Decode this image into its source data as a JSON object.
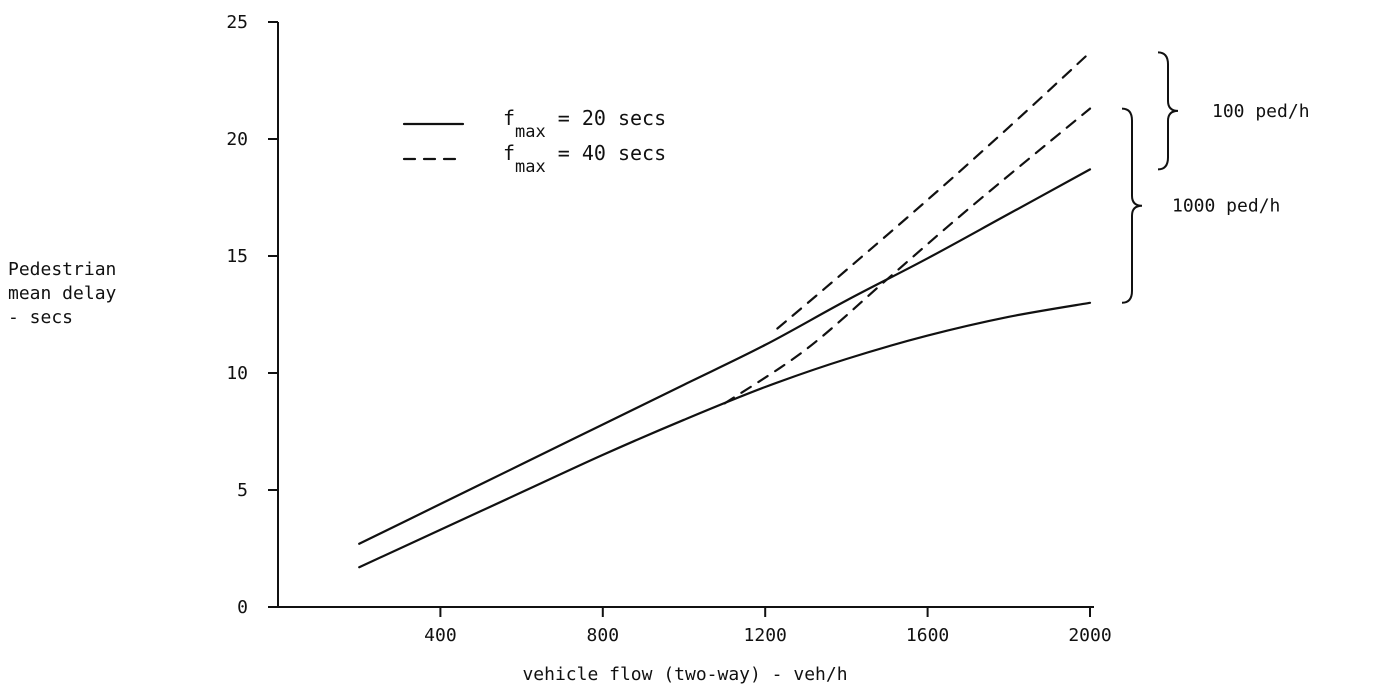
{
  "chart_data": {
    "type": "line",
    "title": "",
    "xlabel": "vehicle flow (two-way) - veh/h",
    "ylabel": [
      "Pedestrian",
      "mean delay",
      "- secs"
    ],
    "xlim": [
      0,
      2000
    ],
    "ylim": [
      0,
      25
    ],
    "x_ticks": [
      400,
      800,
      1200,
      1600,
      2000
    ],
    "y_ticks": [
      0,
      5,
      10,
      15,
      20,
      25
    ],
    "grid": false,
    "legend": {
      "placement": "top-left",
      "entries": [
        {
          "style": "solid",
          "base": "f",
          "sub": "max",
          "text": "= 20 secs"
        },
        {
          "style": "dashed",
          "base": "f",
          "sub": "max",
          "text": "= 40 secs"
        }
      ]
    },
    "brackets": [
      {
        "label": "100 ped/h",
        "y_range": [
          18.7,
          23.7
        ]
      },
      {
        "label": "1000 ped/h",
        "y_range": [
          13.0,
          21.3
        ]
      }
    ],
    "series": [
      {
        "style": "solid",
        "group": "100 ped/h",
        "points": [
          [
            200,
            2.7
          ],
          [
            400,
            4.4
          ],
          [
            600,
            6.1
          ],
          [
            800,
            7.8
          ],
          [
            1000,
            9.5
          ],
          [
            1200,
            11.2
          ],
          [
            1400,
            13.1
          ],
          [
            1600,
            14.9
          ],
          [
            1800,
            16.8
          ],
          [
            2000,
            18.7
          ]
        ]
      },
      {
        "style": "dashed",
        "group": "100 ped/h",
        "points": [
          [
            1230,
            11.9
          ],
          [
            1400,
            14.4
          ],
          [
            1600,
            17.4
          ],
          [
            1800,
            20.5
          ],
          [
            2000,
            23.7
          ]
        ]
      },
      {
        "style": "solid",
        "group": "1000 ped/h",
        "points": [
          [
            200,
            1.7
          ],
          [
            400,
            3.3
          ],
          [
            600,
            4.9
          ],
          [
            800,
            6.5
          ],
          [
            1000,
            8.0
          ],
          [
            1200,
            9.4
          ],
          [
            1400,
            10.6
          ],
          [
            1600,
            11.6
          ],
          [
            1800,
            12.4
          ],
          [
            2000,
            13.0
          ]
        ]
      },
      {
        "style": "dashed",
        "group": "1000 ped/h",
        "points": [
          [
            1100,
            8.7
          ],
          [
            1300,
            11.0
          ],
          [
            1500,
            14.0
          ],
          [
            1700,
            17.0
          ],
          [
            2000,
            21.3
          ]
        ]
      }
    ]
  }
}
